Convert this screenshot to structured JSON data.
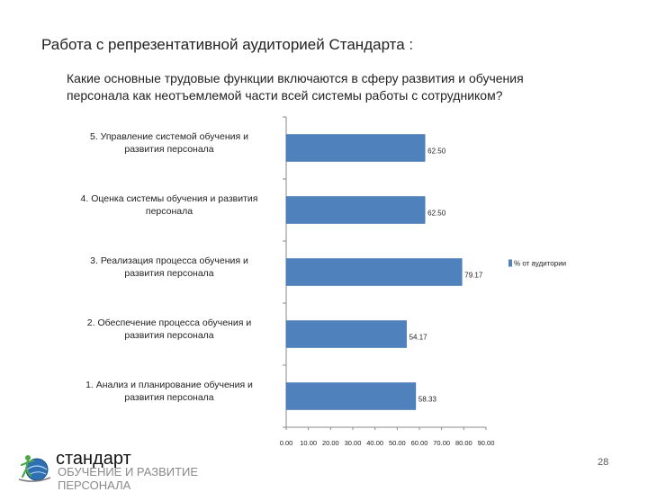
{
  "slide": {
    "title": "Работа с репрезентативной аудиторией Стандарта :",
    "question_line1": "Какие основные трудовые функции включаются в сферу развития и обучения",
    "question_line2": "персонала как неотъемлемой части всей системы работы с сотрудником?",
    "page_number": "28"
  },
  "brand": {
    "name": "стандарт",
    "subtitle_line1": "ОБУЧЕНИЕ И РАЗВИТИЕ",
    "subtitle_line2": "ПЕРСОНАЛА",
    "logo_icon": "globe-figure-logo-icon"
  },
  "chart_data": {
    "type": "bar",
    "orientation": "horizontal",
    "categories": [
      [
        "5. Управление системой обучения и",
        "развития персонала"
      ],
      [
        "4. Оценка системы обучения и развития",
        "персонала"
      ],
      [
        "3. Реализация процесса обучения и",
        "развития персонала"
      ],
      [
        "2. Обеспечение процесса обучения и",
        "развития персонала"
      ],
      [
        "1. Анализ и планирование обучения и",
        "развития персонала"
      ]
    ],
    "series": [
      {
        "name": "% от аудитории",
        "values": [
          62.5,
          62.5,
          79.17,
          54.17,
          58.33
        ],
        "labels": [
          "62.50",
          "62.50",
          "79.17",
          "54.17",
          "58.33"
        ],
        "color": "#4f81bd"
      }
    ],
    "x_ticks": [
      "0.00",
      "10.00",
      "20.00",
      "30.00",
      "40.00",
      "50.00",
      "60.00",
      "70.00",
      "80.00",
      "90.00"
    ],
    "xlim": [
      0,
      90
    ],
    "grid": false,
    "legend_position": "right"
  }
}
